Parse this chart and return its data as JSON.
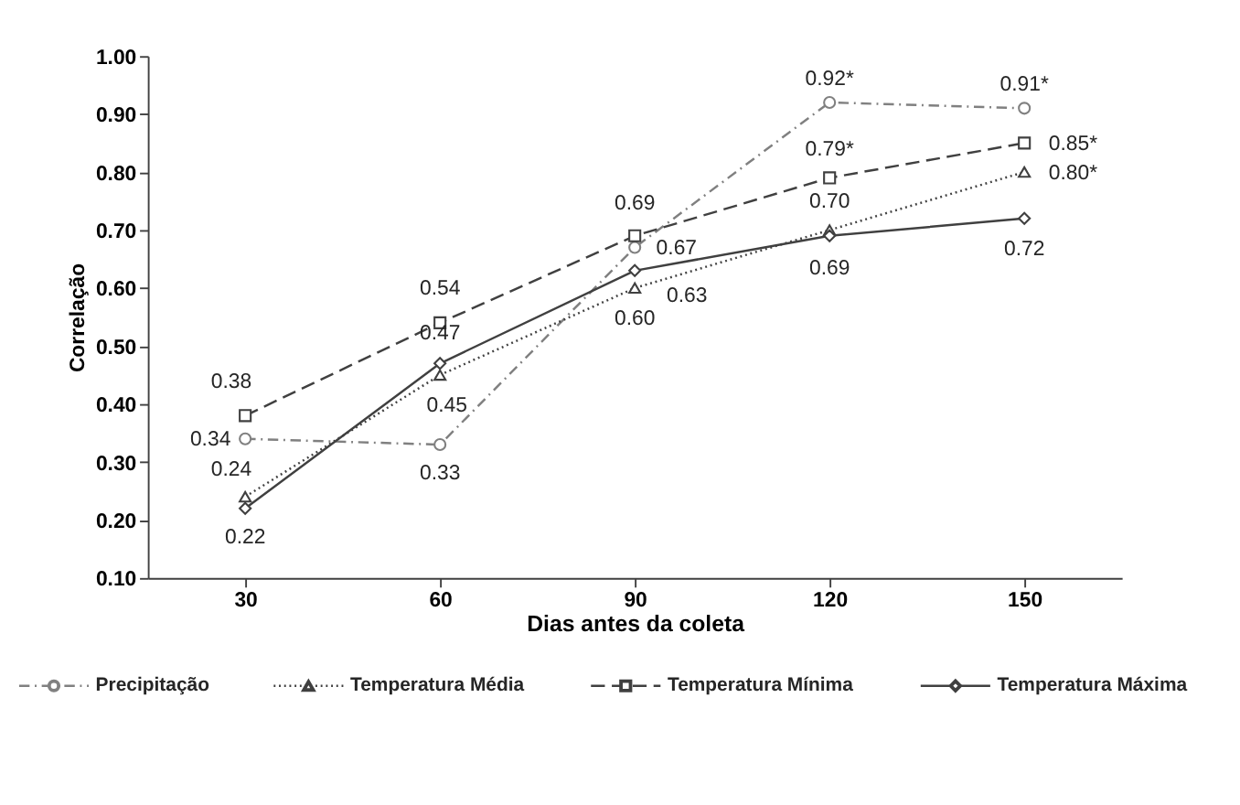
{
  "chart_data": {
    "type": "line",
    "xlabel": "Dias antes da coleta",
    "ylabel": "Correlação",
    "categories": [
      "30",
      "60",
      "90",
      "120",
      "150"
    ],
    "series": [
      {
        "name": "Precipitação",
        "color": "#808080",
        "marker": "circle",
        "line_style": "dashdot",
        "values": [
          0.34,
          0.33,
          0.67,
          0.92,
          0.91
        ],
        "value_labels": [
          "0.34",
          "0.33",
          "0.67",
          "0.92*",
          "0.91*"
        ]
      },
      {
        "name": "Temperatura Média",
        "color": "#404040",
        "marker": "triangle",
        "line_style": "dotted",
        "values": [
          0.24,
          0.45,
          0.6,
          0.7,
          0.8
        ],
        "value_labels": [
          "0.24",
          "0.45",
          "0.60",
          "0.70",
          "0.80*"
        ]
      },
      {
        "name": "Temperatura Mínima",
        "color": "#404040",
        "marker": "square",
        "line_style": "dashed",
        "values": [
          0.38,
          0.54,
          0.69,
          0.79,
          0.85
        ],
        "value_labels": [
          "0.38",
          "0.54",
          "0.69",
          "0.79*",
          "0.85*"
        ]
      },
      {
        "name": "Temperatura Máxima",
        "color": "#404040",
        "marker": "diamond",
        "line_style": "solid",
        "values": [
          0.22,
          0.47,
          0.63,
          0.69,
          0.72
        ],
        "value_labels": [
          "0.22",
          "0.47",
          "0.63",
          "0.69",
          "0.72"
        ]
      }
    ],
    "ylim": [
      0.1,
      1.0
    ],
    "yticks": [
      {
        "value": 0.1,
        "label": "0.10"
      },
      {
        "value": 0.2,
        "label": "0.20"
      },
      {
        "value": 0.3,
        "label": "0.30"
      },
      {
        "value": 0.4,
        "label": "0.40"
      },
      {
        "value": 0.5,
        "label": "0.50"
      },
      {
        "value": 0.6,
        "label": "0.60"
      },
      {
        "value": 0.7,
        "label": "0.70"
      },
      {
        "value": 0.8,
        "label": "0.80"
      },
      {
        "value": 0.9,
        "label": "0.90"
      },
      {
        "value": 1.0,
        "label": "1.00"
      }
    ],
    "grid": false,
    "legend": "bottom"
  }
}
